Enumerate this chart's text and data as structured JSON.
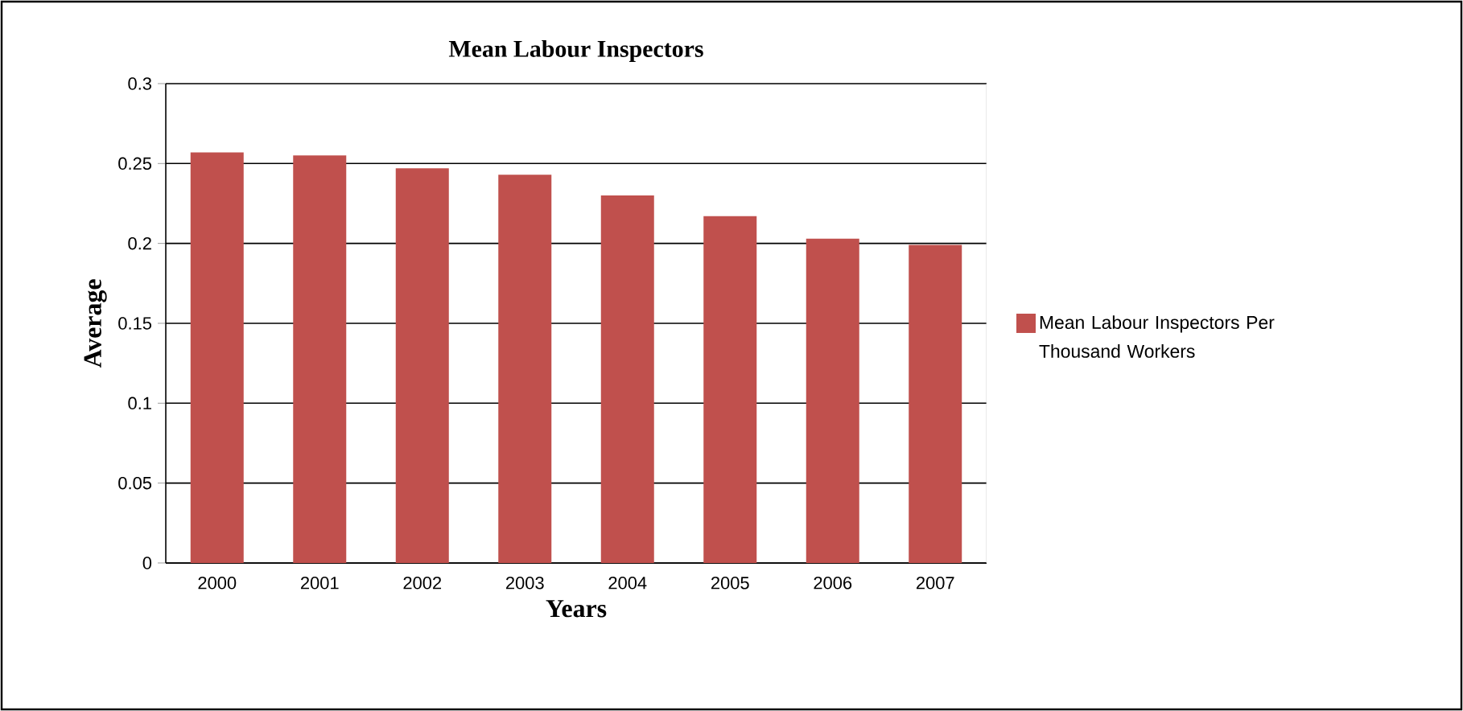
{
  "chart_data": {
    "type": "bar",
    "title": "Mean Labour Inspectors",
    "xlabel": "Years",
    "ylabel": "Average",
    "categories": [
      "2000",
      "2001",
      "2002",
      "2003",
      "2004",
      "2005",
      "2006",
      "2007"
    ],
    "series": [
      {
        "name": "Mean Labour Inspectors Per Thousand Workers",
        "color": "#c0504d",
        "values": [
          0.257,
          0.255,
          0.247,
          0.243,
          0.23,
          0.217,
          0.203,
          0.199
        ]
      }
    ],
    "ylim": [
      0,
      0.3
    ],
    "yticks": [
      0,
      0.05,
      0.1,
      0.15,
      0.2,
      0.25,
      0.3
    ],
    "grid": "y",
    "legend": "right"
  }
}
